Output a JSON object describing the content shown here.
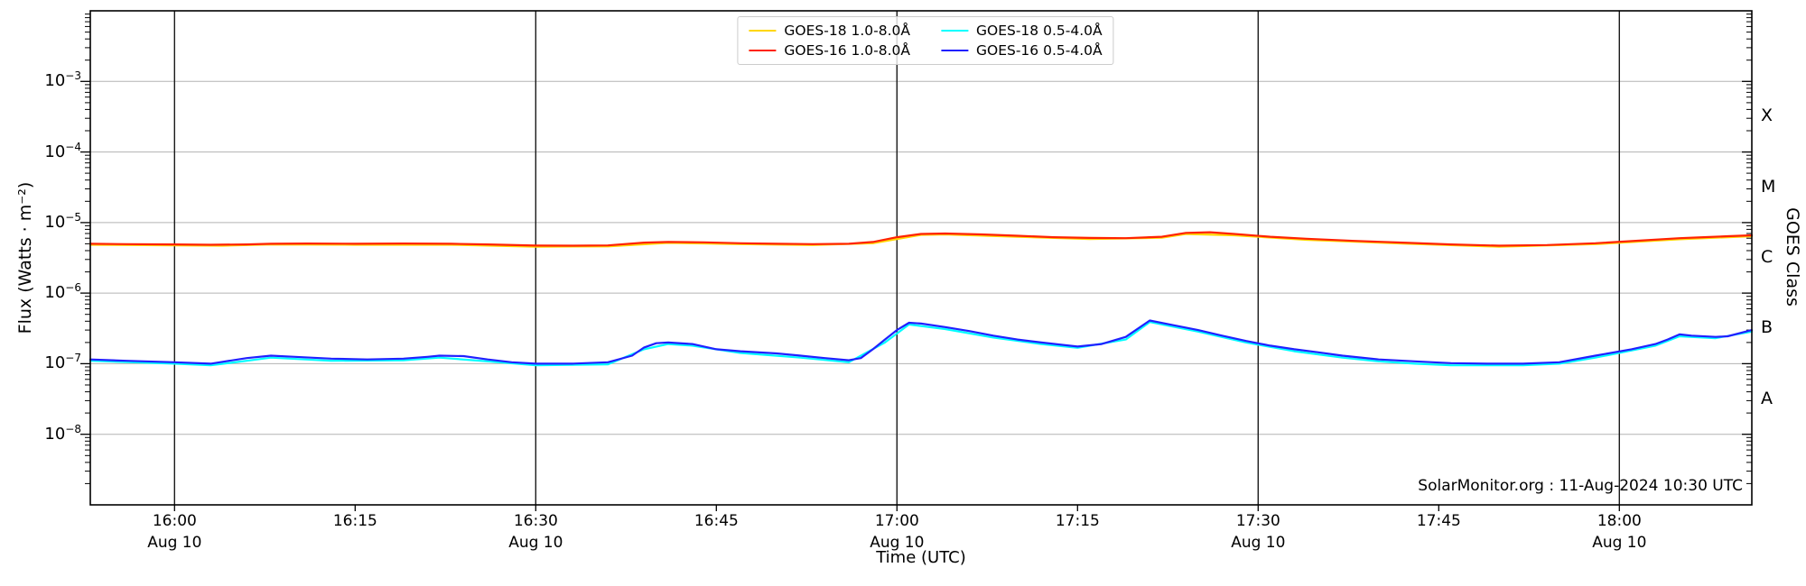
{
  "annotation": "SolarMonitor.org : 11-Aug-2024 10:30 UTC",
  "chart_data": {
    "type": "line",
    "xlabel": "Time (UTC)",
    "ylabel": "Flux (Watts · m⁻²)",
    "ylabel_right": "GOES Class",
    "grid": {
      "horizontal_decades": true,
      "vertical_30min": true
    },
    "legend_position": "top-center",
    "x_range_minutes": [
      953,
      1091
    ],
    "y_log_range": [
      -9,
      -2
    ],
    "y_ticks_exp": [
      -3,
      -4,
      -5,
      -6,
      -7,
      -8
    ],
    "x_ticks": [
      {
        "t": 960,
        "label": "16:00",
        "date": "Aug 10",
        "grid": true
      },
      {
        "t": 975,
        "label": "16:15",
        "date": "",
        "grid": false
      },
      {
        "t": 990,
        "label": "16:30",
        "date": "Aug 10",
        "grid": true
      },
      {
        "t": 1005,
        "label": "16:45",
        "date": "",
        "grid": false
      },
      {
        "t": 1020,
        "label": "17:00",
        "date": "Aug 10",
        "grid": true
      },
      {
        "t": 1035,
        "label": "17:15",
        "date": "",
        "grid": false
      },
      {
        "t": 1050,
        "label": "17:30",
        "date": "Aug 10",
        "grid": true
      },
      {
        "t": 1065,
        "label": "17:45",
        "date": "",
        "grid": false
      },
      {
        "t": 1080,
        "label": "18:00",
        "date": "Aug 10",
        "grid": true
      }
    ],
    "goes_classes": [
      {
        "label": "X",
        "log_center": -3.5
      },
      {
        "label": "M",
        "log_center": -4.5
      },
      {
        "label": "C",
        "log_center": -5.5
      },
      {
        "label": "B",
        "log_center": -6.5
      },
      {
        "label": "A",
        "log_center": -7.5
      }
    ],
    "legend": {
      "entries": [
        {
          "label": "GOES-18 1.0-8.0Å",
          "color": "#FFD700"
        },
        {
          "label": "GOES-18 0.5-4.0Å",
          "color": "#00FFFF"
        },
        {
          "label": "GOES-16 1.0-8.0Å",
          "color": "#FF2200"
        },
        {
          "label": "GOES-16 0.5-4.0Å",
          "color": "#2020FF"
        }
      ]
    },
    "series": [
      {
        "name": "GOES-18 1.0-8.0Å",
        "color": "#FFD700",
        "width": 2.2,
        "points": [
          [
            953,
            4.85e-06
          ],
          [
            960,
            4.75e-06
          ],
          [
            964,
            4.7e-06
          ],
          [
            968,
            4.9e-06
          ],
          [
            975,
            4.85e-06
          ],
          [
            983,
            4.85e-06
          ],
          [
            990,
            4.55e-06
          ],
          [
            996,
            4.6e-06
          ],
          [
            1001,
            5.15e-06
          ],
          [
            1007,
            4.95e-06
          ],
          [
            1013,
            4.8e-06
          ],
          [
            1018,
            5.1e-06
          ],
          [
            1022,
            6.7e-06
          ],
          [
            1024,
            6.8e-06
          ],
          [
            1030,
            6.3e-06
          ],
          [
            1036,
            5.85e-06
          ],
          [
            1042,
            6.1e-06
          ],
          [
            1044,
            6.9e-06
          ],
          [
            1048,
            6.6e-06
          ],
          [
            1054,
            5.7e-06
          ],
          [
            1062,
            5.05e-06
          ],
          [
            1070,
            4.55e-06
          ],
          [
            1078,
            4.95e-06
          ],
          [
            1085,
            5.8e-06
          ],
          [
            1091,
            6.4e-06
          ]
        ]
      },
      {
        "name": "GOES-16 1.0-8.0Å",
        "color": "#FF2200",
        "width": 2.2,
        "points": [
          [
            953,
            5e-06
          ],
          [
            956,
            4.95e-06
          ],
          [
            960,
            4.9e-06
          ],
          [
            963,
            4.85e-06
          ],
          [
            966,
            4.9e-06
          ],
          [
            968,
            5e-06
          ],
          [
            971,
            5.05e-06
          ],
          [
            975,
            5e-06
          ],
          [
            979,
            5.05e-06
          ],
          [
            983,
            5e-06
          ],
          [
            986,
            4.9e-06
          ],
          [
            990,
            4.72e-06
          ],
          [
            993,
            4.7e-06
          ],
          [
            996,
            4.75e-06
          ],
          [
            999,
            5.2e-06
          ],
          [
            1001,
            5.3e-06
          ],
          [
            1004,
            5.25e-06
          ],
          [
            1007,
            5.1e-06
          ],
          [
            1010,
            5e-06
          ],
          [
            1013,
            4.95e-06
          ],
          [
            1016,
            5e-06
          ],
          [
            1018,
            5.3e-06
          ],
          [
            1020,
            6.2e-06
          ],
          [
            1022,
            6.9e-06
          ],
          [
            1024,
            7e-06
          ],
          [
            1027,
            6.8e-06
          ],
          [
            1030,
            6.5e-06
          ],
          [
            1033,
            6.2e-06
          ],
          [
            1036,
            6.05e-06
          ],
          [
            1039,
            6e-06
          ],
          [
            1042,
            6.3e-06
          ],
          [
            1044,
            7.15e-06
          ],
          [
            1046,
            7.3e-06
          ],
          [
            1048,
            6.9e-06
          ],
          [
            1051,
            6.3e-06
          ],
          [
            1054,
            5.9e-06
          ],
          [
            1058,
            5.5e-06
          ],
          [
            1062,
            5.2e-06
          ],
          [
            1066,
            4.9e-06
          ],
          [
            1070,
            4.7e-06
          ],
          [
            1074,
            4.8e-06
          ],
          [
            1078,
            5.1e-06
          ],
          [
            1082,
            5.6e-06
          ],
          [
            1085,
            6e-06
          ],
          [
            1087,
            6.2e-06
          ],
          [
            1089,
            6.4e-06
          ],
          [
            1091,
            6.6e-06
          ]
        ]
      },
      {
        "name": "GOES-18 0.5-4.0Å",
        "color": "#00FFFF",
        "width": 2.2,
        "points": [
          [
            953,
            1.1e-07
          ],
          [
            960,
            1e-07
          ],
          [
            963,
            9.5e-08
          ],
          [
            966,
            1.1e-07
          ],
          [
            968,
            1.22e-07
          ],
          [
            973,
            1.1e-07
          ],
          [
            979,
            1.12e-07
          ],
          [
            982,
            1.22e-07
          ],
          [
            986,
            1.08e-07
          ],
          [
            990,
            9.5e-08
          ],
          [
            996,
            9.8e-08
          ],
          [
            999,
            1.6e-07
          ],
          [
            1001,
            1.9e-07
          ],
          [
            1003,
            1.8e-07
          ],
          [
            1007,
            1.42e-07
          ],
          [
            1012,
            1.22e-07
          ],
          [
            1016,
            1.05e-07
          ],
          [
            1019,
            2e-07
          ],
          [
            1021,
            3.6e-07
          ],
          [
            1024,
            3.1e-07
          ],
          [
            1028,
            2.35e-07
          ],
          [
            1032,
            1.9e-07
          ],
          [
            1035,
            1.68e-07
          ],
          [
            1039,
            2.2e-07
          ],
          [
            1041,
            3.9e-07
          ],
          [
            1045,
            2.85e-07
          ],
          [
            1049,
            2e-07
          ],
          [
            1053,
            1.5e-07
          ],
          [
            1057,
            1.22e-07
          ],
          [
            1060,
            1.08e-07
          ],
          [
            1063,
            1e-07
          ],
          [
            1066,
            9.5e-08
          ],
          [
            1072,
            9.5e-08
          ],
          [
            1075,
            1e-07
          ],
          [
            1078,
            1.22e-07
          ],
          [
            1083,
            1.8e-07
          ],
          [
            1085,
            2.45e-07
          ],
          [
            1088,
            2.3e-07
          ],
          [
            1091,
            2.85e-07
          ]
        ]
      },
      {
        "name": "GOES-16 0.5-4.0Å",
        "color": "#2020FF",
        "width": 2.2,
        "points": [
          [
            953,
            1.15e-07
          ],
          [
            956,
            1.1e-07
          ],
          [
            960,
            1.05e-07
          ],
          [
            963,
            1e-07
          ],
          [
            966,
            1.2e-07
          ],
          [
            968,
            1.3e-07
          ],
          [
            970,
            1.25e-07
          ],
          [
            973,
            1.18e-07
          ],
          [
            976,
            1.15e-07
          ],
          [
            979,
            1.18e-07
          ],
          [
            981,
            1.25e-07
          ],
          [
            982,
            1.3e-07
          ],
          [
            984,
            1.28e-07
          ],
          [
            986,
            1.15e-07
          ],
          [
            988,
            1.05e-07
          ],
          [
            990,
            1e-07
          ],
          [
            993,
            1e-07
          ],
          [
            996,
            1.05e-07
          ],
          [
            998,
            1.3e-07
          ],
          [
            999,
            1.7e-07
          ],
          [
            1000,
            1.95e-07
          ],
          [
            1001,
            2e-07
          ],
          [
            1003,
            1.9e-07
          ],
          [
            1005,
            1.6e-07
          ],
          [
            1007,
            1.5e-07
          ],
          [
            1010,
            1.4e-07
          ],
          [
            1012,
            1.3e-07
          ],
          [
            1014,
            1.2e-07
          ],
          [
            1016,
            1.12e-07
          ],
          [
            1017,
            1.2e-07
          ],
          [
            1018,
            1.6e-07
          ],
          [
            1019,
            2.2e-07
          ],
          [
            1020,
            3e-07
          ],
          [
            1021,
            3.8e-07
          ],
          [
            1022,
            3.7e-07
          ],
          [
            1024,
            3.3e-07
          ],
          [
            1026,
            2.9e-07
          ],
          [
            1028,
            2.5e-07
          ],
          [
            1030,
            2.2e-07
          ],
          [
            1032,
            2e-07
          ],
          [
            1035,
            1.75e-07
          ],
          [
            1037,
            1.9e-07
          ],
          [
            1039,
            2.4e-07
          ],
          [
            1041,
            4.1e-07
          ],
          [
            1043,
            3.5e-07
          ],
          [
            1045,
            3e-07
          ],
          [
            1047,
            2.5e-07
          ],
          [
            1049,
            2.1e-07
          ],
          [
            1051,
            1.8e-07
          ],
          [
            1053,
            1.6e-07
          ],
          [
            1055,
            1.45e-07
          ],
          [
            1057,
            1.3e-07
          ],
          [
            1060,
            1.15e-07
          ],
          [
            1063,
            1.08e-07
          ],
          [
            1066,
            1.02e-07
          ],
          [
            1069,
            1e-07
          ],
          [
            1072,
            1e-07
          ],
          [
            1075,
            1.05e-07
          ],
          [
            1078,
            1.3e-07
          ],
          [
            1081,
            1.6e-07
          ],
          [
            1083,
            1.9e-07
          ],
          [
            1084,
            2.2e-07
          ],
          [
            1085,
            2.6e-07
          ],
          [
            1086,
            2.5e-07
          ],
          [
            1088,
            2.4e-07
          ],
          [
            1089,
            2.45e-07
          ],
          [
            1091,
            3e-07
          ]
        ]
      }
    ],
    "colors": {
      "frame": "#000000",
      "decade_gridline": "#b3b3b3",
      "halfhour_gridline": "#1a1a1a",
      "background": "#ffffff"
    }
  }
}
